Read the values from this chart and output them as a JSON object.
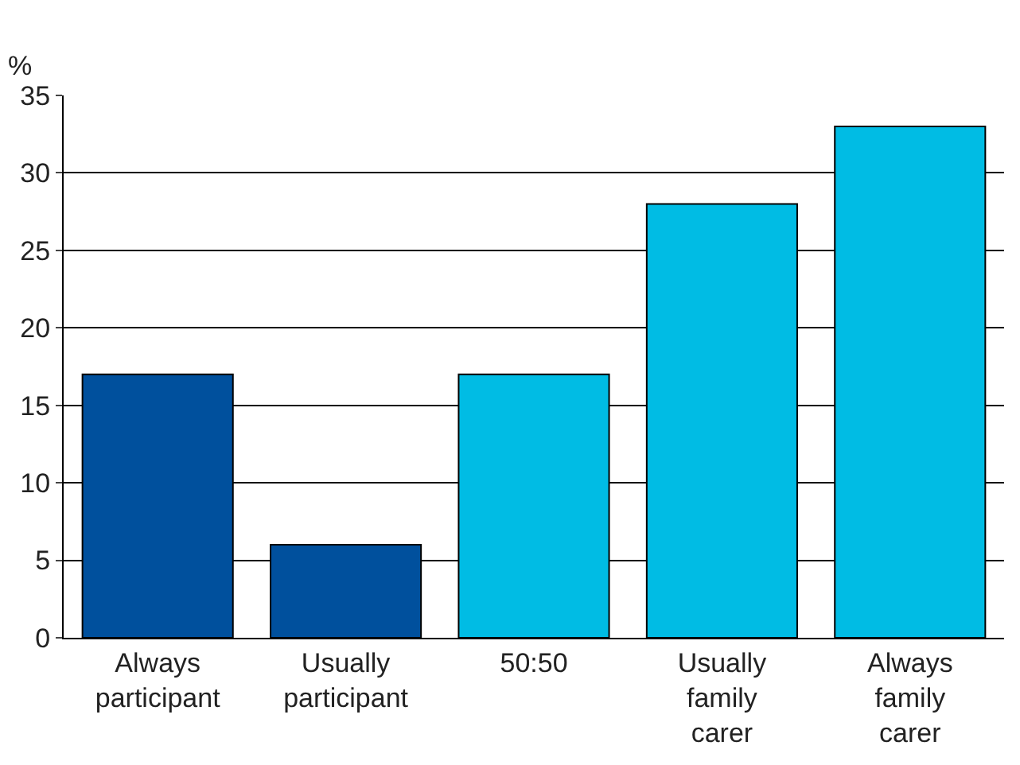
{
  "chart_data": {
    "type": "bar",
    "ylabel": "%",
    "categories": [
      "Always\nparticipant",
      "Usually\nparticipant",
      "50:50",
      "Usually\nfamily\ncarer",
      "Always\nfamily\ncarer"
    ],
    "values": [
      17,
      6,
      17,
      28,
      33
    ],
    "colors": [
      "#00509d",
      "#00509d",
      "#00bce4",
      "#00bce4",
      "#00bce4"
    ],
    "ylim": [
      0,
      35
    ],
    "yticks": [
      0,
      5,
      10,
      15,
      20,
      25,
      30,
      35
    ],
    "grid": "y"
  }
}
